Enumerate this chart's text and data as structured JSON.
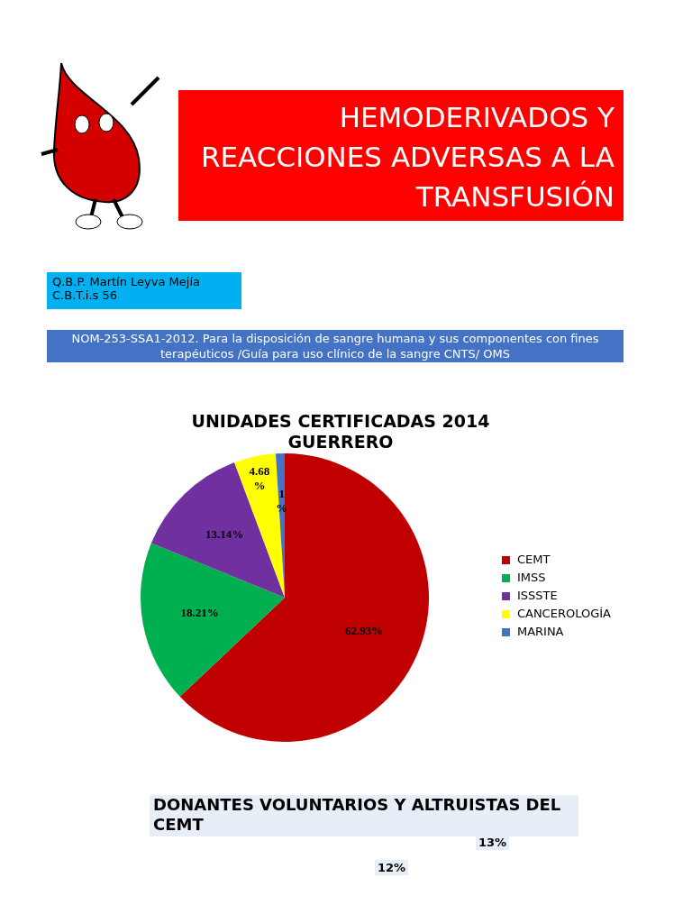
{
  "chart_data": [
    {
      "type": "other",
      "title": "HEMODERIVADOS Y REACCIONES ADVERSAS A LA TRANSFUSIÓN",
      "annotations": [
        "Q.B.P. Martín Leyva Mejía",
        "C.B.T.i.s 56",
        "NOM-253-SSA1-2012. Para la disposición de sangre humana y sus componentes con fines terapéuticos /Guía para uso clínico de la sangre CNTS/ OMS"
      ]
    },
    {
      "type": "pie",
      "title": "UNIDADES CERTIFICADAS 2014 GUERRERO",
      "categories": [
        "CEMT",
        "IMSS",
        "ISSSTE",
        "CANCEROLOGÍA",
        "MARINA"
      ],
      "values": [
        62.93,
        18.21,
        13.14,
        4.68,
        1
      ],
      "colors": [
        "#c00000",
        "#00b050",
        "#7030a0",
        "#ffff00",
        "#4472c4"
      ],
      "value_labels": [
        "62.93%",
        "18.21%",
        "13.14%",
        "4.68 %",
        "1 %"
      ],
      "legend": "right"
    },
    {
      "type": "other",
      "title": "DONANTES VOLUNTARIOS Y ALTRUISTAS DEL CEMT",
      "annotations": [
        "12%",
        "13%"
      ]
    }
  ]
}
